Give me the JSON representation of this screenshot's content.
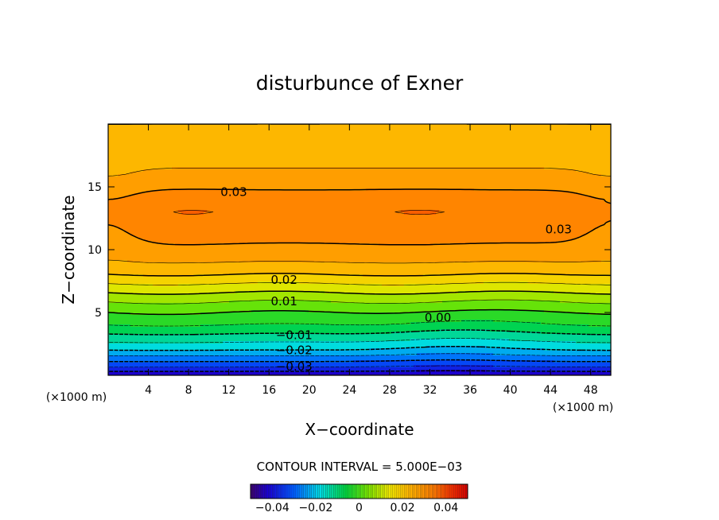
{
  "chart_data": {
    "type": "heatmap",
    "title": "disturbunce of Exner",
    "xlabel": "X−coordinate",
    "ylabel": "Z−coordinate",
    "x_unit_label": "(×1000 m)",
    "y_unit_label": "(×1000 m)",
    "xlim": [
      0,
      50
    ],
    "ylim": [
      0,
      20
    ],
    "x_ticks": [
      4,
      8,
      12,
      16,
      20,
      24,
      28,
      32,
      36,
      40,
      44,
      48
    ],
    "y_ticks": [
      5,
      10,
      15
    ],
    "contour_interval_text": "CONTOUR INTERVAL = 5.000E−03",
    "contour_interval": 0.005,
    "value_range": [
      -0.05,
      0.05
    ],
    "colorbar_ticks": [
      {
        "value": -0.04,
        "label": "−0.04"
      },
      {
        "value": -0.02,
        "label": "−0.02"
      },
      {
        "value": 0,
        "label": "0"
      },
      {
        "value": 0.02,
        "label": "0.02"
      },
      {
        "value": 0.04,
        "label": "0.04"
      }
    ],
    "field_profile_z": [
      0,
      0.5,
      1,
      2,
      3,
      4,
      5,
      6,
      7,
      8,
      9,
      10,
      11,
      12,
      13,
      14,
      15,
      16,
      17,
      18,
      19,
      20
    ],
    "field_profile_value": [
      -0.045,
      -0.037,
      -0.031,
      -0.02,
      -0.012,
      -0.005,
      0.0,
      0.006,
      0.013,
      0.02,
      0.025,
      0.029,
      0.031,
      0.033,
      0.034,
      0.033,
      0.029,
      0.026,
      0.024,
      0.022,
      0.021,
      0.02
    ],
    "warm_cores": [
      {
        "x": 8,
        "z": 12.8
      },
      {
        "x": 31,
        "z": 12.8
      }
    ],
    "contour_labels": [
      {
        "text": "0.03",
        "x": 12.5,
        "z": 14.6
      },
      {
        "text": "0.03",
        "x": 44.8,
        "z": 11.6
      },
      {
        "text": "0.02",
        "x": 17.5,
        "z": 7.6
      },
      {
        "text": "0.01",
        "x": 17.5,
        "z": 5.9
      },
      {
        "text": "0.00",
        "x": 32.8,
        "z": 4.6
      },
      {
        "text": "−0.01",
        "x": 18.5,
        "z": 3.2
      },
      {
        "text": "−0.02",
        "x": 18.5,
        "z": 2.0
      },
      {
        "text": "−0.03",
        "x": 18.5,
        "z": 0.7
      }
    ]
  }
}
